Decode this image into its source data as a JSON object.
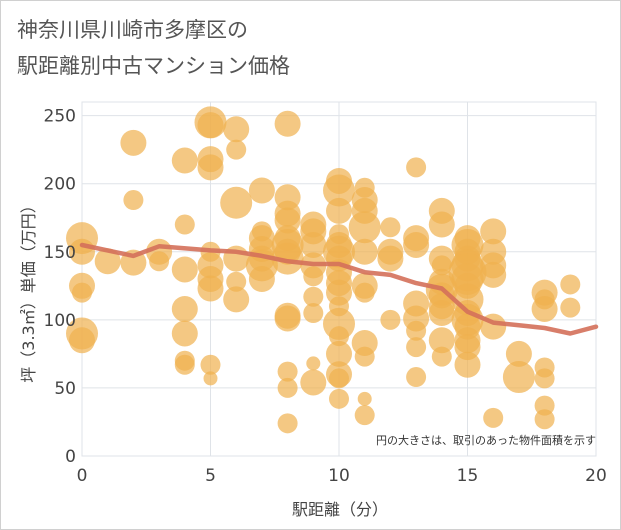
{
  "title_line1": "神奈川県川崎市多摩区の",
  "title_line2": "駅距離別中古マンション価格",
  "colors": {
    "bubble": "#f0b04e",
    "line": "#d4705a",
    "grid": "#dfe3e8",
    "frame": "#d0d0d0"
  },
  "chart_data": {
    "type": "scatter",
    "title": "神奈川県川崎市多摩区の駅距離別中古マンション価格",
    "xlabel": "駅距離（分）",
    "ylabel": "坪（3.3㎡）単価（万円）",
    "xlim": [
      0,
      20
    ],
    "ylim": [
      0,
      260
    ],
    "x_ticks": [
      "0",
      "5",
      "10",
      "15",
      "20"
    ],
    "y_ticks": [
      "0",
      "50",
      "100",
      "150",
      "200",
      "250"
    ],
    "grid": true,
    "annotation": "円の大きさは、取引のあった物件面積を示す",
    "series": [
      {
        "points": [
          {
            "x": 0,
            "y": 160,
            "s": 4
          },
          {
            "x": 0,
            "y": 150,
            "s": 3
          },
          {
            "x": 0,
            "y": 125,
            "s": 3
          },
          {
            "x": 0,
            "y": 120,
            "s": 2
          },
          {
            "x": 0,
            "y": 90,
            "s": 4
          },
          {
            "x": 0,
            "y": 85,
            "s": 3
          },
          {
            "x": 1,
            "y": 143,
            "s": 3
          },
          {
            "x": 2,
            "y": 230,
            "s": 3
          },
          {
            "x": 2,
            "y": 188,
            "s": 2
          },
          {
            "x": 2,
            "y": 142,
            "s": 3
          },
          {
            "x": 3,
            "y": 150,
            "s": 3
          },
          {
            "x": 3,
            "y": 143,
            "s": 2
          },
          {
            "x": 4,
            "y": 217,
            "s": 3
          },
          {
            "x": 4,
            "y": 170,
            "s": 2
          },
          {
            "x": 4,
            "y": 137,
            "s": 3
          },
          {
            "x": 4,
            "y": 108,
            "s": 3
          },
          {
            "x": 4,
            "y": 90,
            "s": 3
          },
          {
            "x": 4,
            "y": 70,
            "s": 2
          },
          {
            "x": 4,
            "y": 67,
            "s": 2
          },
          {
            "x": 5,
            "y": 245,
            "s": 4
          },
          {
            "x": 5,
            "y": 243,
            "s": 3
          },
          {
            "x": 5,
            "y": 218,
            "s": 3
          },
          {
            "x": 5,
            "y": 212,
            "s": 3
          },
          {
            "x": 5,
            "y": 150,
            "s": 2
          },
          {
            "x": 5,
            "y": 140,
            "s": 3
          },
          {
            "x": 5,
            "y": 130,
            "s": 3
          },
          {
            "x": 5,
            "y": 123,
            "s": 3
          },
          {
            "x": 5,
            "y": 67,
            "s": 2
          },
          {
            "x": 5,
            "y": 57,
            "s": 1
          },
          {
            "x": 6,
            "y": 240,
            "s": 3
          },
          {
            "x": 6,
            "y": 225,
            "s": 2
          },
          {
            "x": 6,
            "y": 186,
            "s": 4
          },
          {
            "x": 6,
            "y": 145,
            "s": 3
          },
          {
            "x": 6,
            "y": 128,
            "s": 2
          },
          {
            "x": 6,
            "y": 115,
            "s": 3
          },
          {
            "x": 7,
            "y": 195,
            "s": 3
          },
          {
            "x": 7,
            "y": 165,
            "s": 2
          },
          {
            "x": 7,
            "y": 160,
            "s": 3
          },
          {
            "x": 7,
            "y": 152,
            "s": 3
          },
          {
            "x": 7,
            "y": 145,
            "s": 3
          },
          {
            "x": 7,
            "y": 140,
            "s": 4
          },
          {
            "x": 7,
            "y": 130,
            "s": 3
          },
          {
            "x": 8,
            "y": 244,
            "s": 3
          },
          {
            "x": 8,
            "y": 190,
            "s": 3
          },
          {
            "x": 8,
            "y": 178,
            "s": 3
          },
          {
            "x": 8,
            "y": 173,
            "s": 3
          },
          {
            "x": 8,
            "y": 160,
            "s": 3
          },
          {
            "x": 8,
            "y": 155,
            "s": 4
          },
          {
            "x": 8,
            "y": 150,
            "s": 3
          },
          {
            "x": 8,
            "y": 145,
            "s": 4
          },
          {
            "x": 8,
            "y": 103,
            "s": 3
          },
          {
            "x": 8,
            "y": 101,
            "s": 3
          },
          {
            "x": 8,
            "y": 62,
            "s": 2
          },
          {
            "x": 8,
            "y": 50,
            "s": 2
          },
          {
            "x": 8,
            "y": 24,
            "s": 2
          },
          {
            "x": 9,
            "y": 170,
            "s": 3
          },
          {
            "x": 9,
            "y": 165,
            "s": 3
          },
          {
            "x": 9,
            "y": 155,
            "s": 3
          },
          {
            "x": 9,
            "y": 140,
            "s": 3
          },
          {
            "x": 9,
            "y": 132,
            "s": 2
          },
          {
            "x": 9,
            "y": 117,
            "s": 2
          },
          {
            "x": 9,
            "y": 105,
            "s": 2
          },
          {
            "x": 9,
            "y": 68,
            "s": 1
          },
          {
            "x": 9,
            "y": 54,
            "s": 3
          },
          {
            "x": 10,
            "y": 202,
            "s": 3
          },
          {
            "x": 10,
            "y": 195,
            "s": 4
          },
          {
            "x": 10,
            "y": 180,
            "s": 3
          },
          {
            "x": 10,
            "y": 163,
            "s": 2
          },
          {
            "x": 10,
            "y": 155,
            "s": 3
          },
          {
            "x": 10,
            "y": 150,
            "s": 4
          },
          {
            "x": 10,
            "y": 145,
            "s": 3
          },
          {
            "x": 10,
            "y": 135,
            "s": 3
          },
          {
            "x": 10,
            "y": 127,
            "s": 3
          },
          {
            "x": 10,
            "y": 120,
            "s": 3
          },
          {
            "x": 10,
            "y": 110,
            "s": 2
          },
          {
            "x": 10,
            "y": 97,
            "s": 4
          },
          {
            "x": 10,
            "y": 88,
            "s": 2
          },
          {
            "x": 10,
            "y": 75,
            "s": 3
          },
          {
            "x": 10,
            "y": 60,
            "s": 3
          },
          {
            "x": 10,
            "y": 57,
            "s": 2
          },
          {
            "x": 10,
            "y": 42,
            "s": 2
          },
          {
            "x": 11,
            "y": 197,
            "s": 2
          },
          {
            "x": 11,
            "y": 188,
            "s": 3
          },
          {
            "x": 11,
            "y": 180,
            "s": 3
          },
          {
            "x": 11,
            "y": 168,
            "s": 4
          },
          {
            "x": 11,
            "y": 150,
            "s": 3
          },
          {
            "x": 11,
            "y": 125,
            "s": 3
          },
          {
            "x": 11,
            "y": 120,
            "s": 2
          },
          {
            "x": 11,
            "y": 83,
            "s": 3
          },
          {
            "x": 11,
            "y": 73,
            "s": 2
          },
          {
            "x": 11,
            "y": 42,
            "s": 1
          },
          {
            "x": 11,
            "y": 30,
            "s": 2
          },
          {
            "x": 12,
            "y": 168,
            "s": 2
          },
          {
            "x": 12,
            "y": 150,
            "s": 3
          },
          {
            "x": 12,
            "y": 145,
            "s": 3
          },
          {
            "x": 12,
            "y": 100,
            "s": 2
          },
          {
            "x": 13,
            "y": 212,
            "s": 2
          },
          {
            "x": 13,
            "y": 160,
            "s": 3
          },
          {
            "x": 13,
            "y": 155,
            "s": 3
          },
          {
            "x": 13,
            "y": 112,
            "s": 3
          },
          {
            "x": 13,
            "y": 101,
            "s": 3
          },
          {
            "x": 13,
            "y": 92,
            "s": 2
          },
          {
            "x": 13,
            "y": 80,
            "s": 2
          },
          {
            "x": 13,
            "y": 58,
            "s": 2
          },
          {
            "x": 14,
            "y": 180,
            "s": 3
          },
          {
            "x": 14,
            "y": 170,
            "s": 3
          },
          {
            "x": 14,
            "y": 145,
            "s": 3
          },
          {
            "x": 14,
            "y": 140,
            "s": 2
          },
          {
            "x": 14,
            "y": 128,
            "s": 3
          },
          {
            "x": 14,
            "y": 122,
            "s": 4
          },
          {
            "x": 14,
            "y": 118,
            "s": 3
          },
          {
            "x": 14,
            "y": 110,
            "s": 3
          },
          {
            "x": 14,
            "y": 105,
            "s": 3
          },
          {
            "x": 14,
            "y": 85,
            "s": 3
          },
          {
            "x": 14,
            "y": 73,
            "s": 2
          },
          {
            "x": 15,
            "y": 160,
            "s": 3
          },
          {
            "x": 15,
            "y": 155,
            "s": 4
          },
          {
            "x": 15,
            "y": 150,
            "s": 3
          },
          {
            "x": 15,
            "y": 145,
            "s": 3
          },
          {
            "x": 15,
            "y": 140,
            "s": 4
          },
          {
            "x": 15,
            "y": 135,
            "s": 5
          },
          {
            "x": 15,
            "y": 130,
            "s": 4
          },
          {
            "x": 15,
            "y": 125,
            "s": 3
          },
          {
            "x": 15,
            "y": 115,
            "s": 4
          },
          {
            "x": 15,
            "y": 105,
            "s": 3
          },
          {
            "x": 15,
            "y": 100,
            "s": 4
          },
          {
            "x": 15,
            "y": 95,
            "s": 3
          },
          {
            "x": 15,
            "y": 85,
            "s": 3
          },
          {
            "x": 15,
            "y": 80,
            "s": 3
          },
          {
            "x": 15,
            "y": 67,
            "s": 3
          },
          {
            "x": 16,
            "y": 165,
            "s": 3
          },
          {
            "x": 16,
            "y": 150,
            "s": 3
          },
          {
            "x": 16,
            "y": 140,
            "s": 3
          },
          {
            "x": 16,
            "y": 133,
            "s": 3
          },
          {
            "x": 16,
            "y": 95,
            "s": 3
          },
          {
            "x": 16,
            "y": 28,
            "s": 2
          },
          {
            "x": 17,
            "y": 75,
            "s": 3
          },
          {
            "x": 17,
            "y": 58,
            "s": 4
          },
          {
            "x": 18,
            "y": 120,
            "s": 3
          },
          {
            "x": 18,
            "y": 115,
            "s": 2
          },
          {
            "x": 18,
            "y": 108,
            "s": 3
          },
          {
            "x": 18,
            "y": 65,
            "s": 2
          },
          {
            "x": 18,
            "y": 57,
            "s": 2
          },
          {
            "x": 18,
            "y": 37,
            "s": 2
          },
          {
            "x": 18,
            "y": 27,
            "s": 2
          },
          {
            "x": 19,
            "y": 126,
            "s": 2
          },
          {
            "x": 19,
            "y": 109,
            "s": 2
          }
        ]
      },
      {
        "type": "line",
        "x": [
          0,
          2,
          3,
          5,
          6,
          7,
          8,
          9,
          10,
          11,
          12,
          13,
          14,
          15,
          16,
          17,
          18,
          19,
          20
        ],
        "y": [
          155,
          147,
          154,
          151,
          150,
          147,
          143,
          141,
          141,
          135,
          133,
          127,
          123,
          106,
          98,
          96,
          94,
          90,
          95
        ]
      }
    ]
  }
}
